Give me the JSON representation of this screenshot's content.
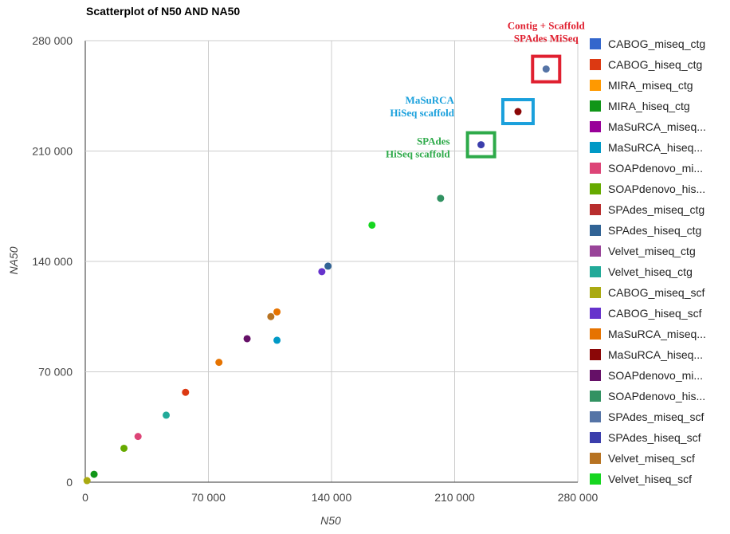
{
  "chart_data": {
    "type": "scatter",
    "title": "Scatterplot of N50 AND NA50",
    "xlabel": "N50",
    "ylabel": "NA50",
    "xlim": [
      0,
      280000
    ],
    "ylim": [
      0,
      280000
    ],
    "xticks": [
      0,
      70000,
      140000,
      210000,
      280000
    ],
    "yticks": [
      0,
      70000,
      140000,
      210000,
      280000
    ],
    "xtick_labels": [
      "0",
      "70 000",
      "140 000",
      "210 000",
      "280 000"
    ],
    "ytick_labels": [
      "0",
      "70 000",
      "140 000",
      "210 000",
      "280 000"
    ],
    "grid": true,
    "legend_position": "right",
    "series": [
      {
        "name": "CABOG_miseq_ctg",
        "legend_label": "CABOG_miseq_ctg",
        "color": "#3366cc",
        "points": []
      },
      {
        "name": "CABOG_hiseq_ctg",
        "legend_label": "CABOG_hiseq_ctg",
        "color": "#dc3912",
        "points": [
          {
            "x": 57000,
            "y": 57000
          }
        ]
      },
      {
        "name": "MIRA_miseq_ctg",
        "legend_label": "MIRA_miseq_ctg",
        "color": "#ff9900",
        "points": []
      },
      {
        "name": "MIRA_hiseq_ctg",
        "legend_label": "MIRA_hiseq_ctg",
        "color": "#109618",
        "points": [
          {
            "x": 5000,
            "y": 5000
          }
        ]
      },
      {
        "name": "MaSuRCA_miseq_ctg",
        "legend_label": "MaSuRCA_miseq...",
        "color": "#990099",
        "points": []
      },
      {
        "name": "MaSuRCA_hiseq_ctg",
        "legend_label": "MaSuRCA_hiseq...",
        "color": "#0099c6",
        "points": [
          {
            "x": 109000,
            "y": 90000
          }
        ]
      },
      {
        "name": "SOAPdenovo_miseq_ctg",
        "legend_label": "SOAPdenovo_mi...",
        "color": "#dd4477",
        "points": [
          {
            "x": 30000,
            "y": 29000
          }
        ]
      },
      {
        "name": "SOAPdenovo_hiseq_ctg",
        "legend_label": "SOAPdenovo_his...",
        "color": "#66aa00",
        "points": [
          {
            "x": 22000,
            "y": 21500
          }
        ]
      },
      {
        "name": "SPAdes_miseq_ctg",
        "legend_label": "SPAdes_miseq_ctg",
        "color": "#b82e2e",
        "points": []
      },
      {
        "name": "SPAdes_hiseq_ctg",
        "legend_label": "SPAdes_hiseq_ctg",
        "color": "#316395",
        "points": [
          {
            "x": 138000,
            "y": 137000
          }
        ]
      },
      {
        "name": "Velvet_miseq_ctg",
        "legend_label": "Velvet_miseq_ctg",
        "color": "#994499",
        "points": []
      },
      {
        "name": "Velvet_hiseq_ctg",
        "legend_label": "Velvet_hiseq_ctg",
        "color": "#22aa99",
        "points": [
          {
            "x": 46000,
            "y": 42500
          }
        ]
      },
      {
        "name": "CABOG_miseq_scf",
        "legend_label": "CABOG_miseq_scf",
        "color": "#aaaa11",
        "points": [
          {
            "x": 1000,
            "y": 1000
          }
        ]
      },
      {
        "name": "CABOG_hiseq_scf",
        "legend_label": "CABOG_hiseq_scf",
        "color": "#6633cc",
        "points": [
          {
            "x": 134500,
            "y": 133500
          }
        ]
      },
      {
        "name": "MaSuRCA_miseq_scf",
        "legend_label": "MaSuRCA_miseq...",
        "color": "#e67300",
        "points": [
          {
            "x": 76000,
            "y": 76000
          },
          {
            "x": 109000,
            "y": 108000
          }
        ]
      },
      {
        "name": "MaSuRCA_hiseq_scf",
        "legend_label": "MaSuRCA_hiseq...",
        "color": "#8b0707",
        "points": [
          {
            "x": 246000,
            "y": 235000
          }
        ]
      },
      {
        "name": "SOAPdenovo_miseq_scf",
        "legend_label": "SOAPdenovo_mi...",
        "color": "#651067",
        "points": [
          {
            "x": 92000,
            "y": 91000
          }
        ]
      },
      {
        "name": "SOAPdenovo_hiseq_scf",
        "legend_label": "SOAPdenovo_his...",
        "color": "#329262",
        "points": [
          {
            "x": 202000,
            "y": 180000
          }
        ]
      },
      {
        "name": "SPAdes_miseq_scf",
        "legend_label": "SPAdes_miseq_scf",
        "color": "#5574a6",
        "points": [
          {
            "x": 262000,
            "y": 262000
          }
        ]
      },
      {
        "name": "SPAdes_hiseq_scf",
        "legend_label": "SPAdes_hiseq_scf",
        "color": "#3b3eac",
        "points": [
          {
            "x": 225000,
            "y": 214000
          }
        ]
      },
      {
        "name": "Velvet_miseq_scf",
        "legend_label": "Velvet_miseq_scf",
        "color": "#b77322",
        "points": [
          {
            "x": 105500,
            "y": 105000
          }
        ]
      },
      {
        "name": "Velvet_hiseq_scf",
        "legend_label": "Velvet_hiseq_scf",
        "color": "#16d620",
        "points": [
          {
            "x": 163000,
            "y": 163000
          }
        ]
      }
    ],
    "annotations": [
      {
        "lines": [
          "Contig + Scaffold",
          "SPAdes MiSeq"
        ],
        "color": "#e02030",
        "box_color": "#e02030",
        "target": {
          "x": 262000,
          "y": 262000
        }
      },
      {
        "lines": [
          "MaSuRCA",
          "HiSeq scaffold"
        ],
        "color": "#1aa0dc",
        "box_color": "#1aa0dc",
        "target": {
          "x": 246000,
          "y": 235000
        }
      },
      {
        "lines": [
          "SPAdes",
          "HiSeq scaffold"
        ],
        "color": "#2eaa4a",
        "box_color": "#2eaa4a",
        "target": {
          "x": 225000,
          "y": 214000
        }
      }
    ]
  }
}
